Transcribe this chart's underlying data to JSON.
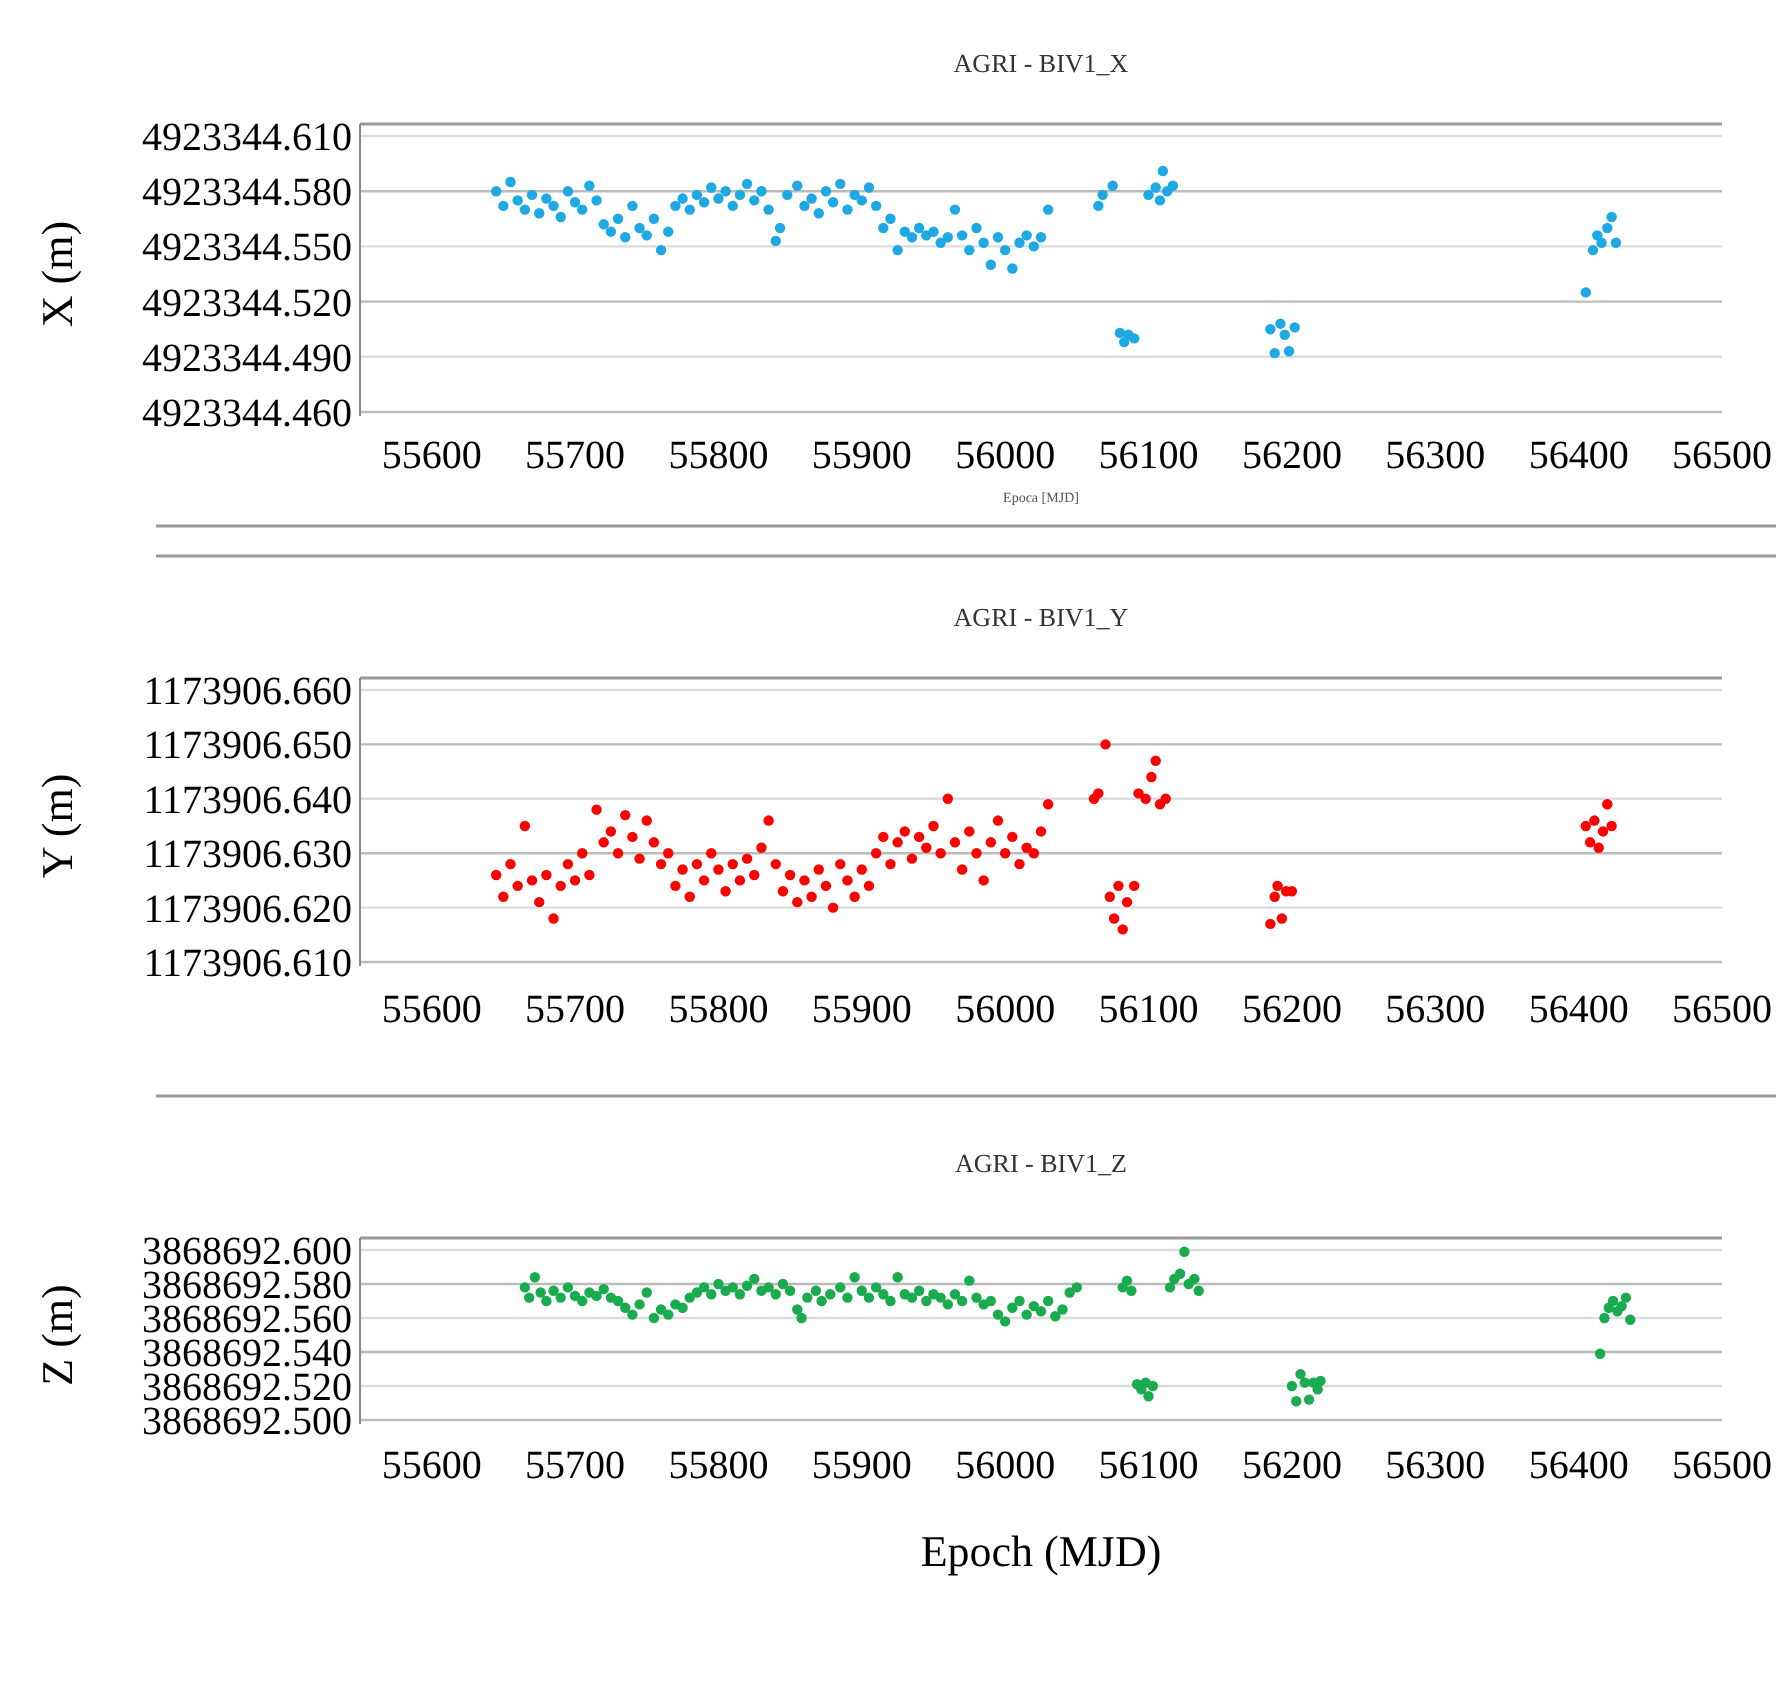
{
  "chart_data": [
    {
      "type": "scatter",
      "title": "AGRI - BIV1_X",
      "ylabel": "X (m)",
      "annotations": [
        "Epoca [MJD]"
      ],
      "color": "#1ea8e4",
      "marker": "circle",
      "grid": "y",
      "xlim": [
        55550,
        56500
      ],
      "xticks": [
        55600,
        55700,
        55800,
        55900,
        56000,
        56100,
        56200,
        56300,
        56400,
        56500
      ],
      "ylim": [
        4923344.46,
        4923344.61
      ],
      "yticks": [
        {
          "value": 4923344.46,
          "label": "4923344.460"
        },
        {
          "value": 4923344.49,
          "label": "4923344.490"
        },
        {
          "value": 4923344.52,
          "label": "4923344.520"
        },
        {
          "value": 4923344.55,
          "label": "4923344.550"
        },
        {
          "value": 4923344.58,
          "label": "4923344.580"
        },
        {
          "value": 4923344.61,
          "label": "4923344.610"
        }
      ],
      "x": [
        55645,
        55650,
        55655,
        55660,
        55665,
        55670,
        55675,
        55680,
        55685,
        55690,
        55695,
        55700,
        55705,
        55710,
        55715,
        55720,
        55725,
        55730,
        55735,
        55740,
        55745,
        55750,
        55755,
        55760,
        55765,
        55770,
        55775,
        55780,
        55785,
        55790,
        55795,
        55800,
        55805,
        55810,
        55815,
        55820,
        55825,
        55830,
        55835,
        55840,
        55843,
        55848,
        55855,
        55860,
        55865,
        55870,
        55875,
        55880,
        55885,
        55890,
        55895,
        55900,
        55905,
        55910,
        55915,
        55920,
        55925,
        55930,
        55935,
        55940,
        55945,
        55950,
        55955,
        55960,
        55965,
        55970,
        55975,
        55980,
        55985,
        55990,
        55995,
        56000,
        56005,
        56010,
        56015,
        56020,
        56025,
        56030,
        56065,
        56068,
        56075,
        56080,
        56083,
        56086,
        56090,
        56100,
        56105,
        56108,
        56110,
        56113,
        56117,
        56185,
        56188,
        56192,
        56195,
        56198,
        56202,
        56405,
        56410,
        56413,
        56416,
        56420,
        56423,
        56426
      ],
      "values": [
        4923344.58,
        4923344.572,
        4923344.585,
        4923344.575,
        4923344.57,
        4923344.578,
        4923344.568,
        4923344.576,
        4923344.572,
        4923344.566,
        4923344.58,
        4923344.574,
        4923344.57,
        4923344.583,
        4923344.575,
        4923344.562,
        4923344.558,
        4923344.565,
        4923344.555,
        4923344.572,
        4923344.56,
        4923344.556,
        4923344.565,
        4923344.548,
        4923344.558,
        4923344.572,
        4923344.576,
        4923344.57,
        4923344.578,
        4923344.574,
        4923344.582,
        4923344.576,
        4923344.58,
        4923344.572,
        4923344.578,
        4923344.584,
        4923344.575,
        4923344.58,
        4923344.57,
        4923344.553,
        4923344.56,
        4923344.578,
        4923344.583,
        4923344.572,
        4923344.576,
        4923344.568,
        4923344.58,
        4923344.574,
        4923344.584,
        4923344.57,
        4923344.578,
        4923344.575,
        4923344.582,
        4923344.572,
        4923344.56,
        4923344.565,
        4923344.548,
        4923344.558,
        4923344.555,
        4923344.56,
        4923344.556,
        4923344.558,
        4923344.552,
        4923344.555,
        4923344.57,
        4923344.556,
        4923344.548,
        4923344.56,
        4923344.552,
        4923344.54,
        4923344.555,
        4923344.548,
        4923344.538,
        4923344.552,
        4923344.556,
        4923344.55,
        4923344.555,
        4923344.57,
        4923344.572,
        4923344.578,
        4923344.583,
        4923344.503,
        4923344.498,
        4923344.502,
        4923344.5,
        4923344.578,
        4923344.582,
        4923344.575,
        4923344.591,
        4923344.58,
        4923344.583,
        4923344.505,
        4923344.492,
        4923344.508,
        4923344.502,
        4923344.493,
        4923344.506,
        4923344.525,
        4923344.548,
        4923344.556,
        4923344.552,
        4923344.56,
        4923344.566,
        4923344.552
      ]
    },
    {
      "type": "scatter",
      "title": "AGRI - BIV1_Y",
      "ylabel": "Y (m)",
      "color": "#ff0000",
      "marker": "circle",
      "grid": "y",
      "xlim": [
        55550,
        56500
      ],
      "xticks": [
        55600,
        55700,
        55800,
        55900,
        56000,
        56100,
        56200,
        56300,
        56400,
        56500
      ],
      "ylim": [
        1173906.61,
        1173906.66
      ],
      "yticks": [
        {
          "value": 1173906.61,
          "label": "1173906.610"
        },
        {
          "value": 1173906.62,
          "label": "1173906.620"
        },
        {
          "value": 1173906.63,
          "label": "1173906.630"
        },
        {
          "value": 1173906.64,
          "label": "1173906.640"
        },
        {
          "value": 1173906.65,
          "label": "1173906.650"
        },
        {
          "value": 1173906.66,
          "label": "1173906.660"
        }
      ],
      "x": [
        55645,
        55650,
        55655,
        55660,
        55665,
        55670,
        55675,
        55680,
        55685,
        55690,
        55695,
        55700,
        55705,
        55710,
        55715,
        55720,
        55725,
        55730,
        55735,
        55740,
        55745,
        55750,
        55755,
        55760,
        55765,
        55770,
        55775,
        55780,
        55785,
        55790,
        55795,
        55800,
        55805,
        55810,
        55815,
        55820,
        55825,
        55830,
        55835,
        55840,
        55845,
        55850,
        55855,
        55860,
        55865,
        55870,
        55875,
        55880,
        55885,
        55890,
        55895,
        55900,
        55905,
        55910,
        55915,
        55920,
        55925,
        55930,
        55935,
        55940,
        55945,
        55950,
        55955,
        55960,
        55965,
        55970,
        55975,
        55980,
        55985,
        55990,
        55995,
        56000,
        56005,
        56010,
        56015,
        56020,
        56025,
        56030,
        56062,
        56065,
        56070,
        56073,
        56076,
        56079,
        56082,
        56085,
        56090,
        56093,
        56098,
        56102,
        56105,
        56108,
        56112,
        56185,
        56188,
        56190,
        56193,
        56196,
        56200,
        56405,
        56408,
        56411,
        56414,
        56417,
        56420,
        56423
      ],
      "values": [
        1173906.626,
        1173906.622,
        1173906.628,
        1173906.624,
        1173906.635,
        1173906.625,
        1173906.621,
        1173906.626,
        1173906.618,
        1173906.624,
        1173906.628,
        1173906.625,
        1173906.63,
        1173906.626,
        1173906.638,
        1173906.632,
        1173906.634,
        1173906.63,
        1173906.637,
        1173906.633,
        1173906.629,
        1173906.636,
        1173906.632,
        1173906.628,
        1173906.63,
        1173906.624,
        1173906.627,
        1173906.622,
        1173906.628,
        1173906.625,
        1173906.63,
        1173906.627,
        1173906.623,
        1173906.628,
        1173906.625,
        1173906.629,
        1173906.626,
        1173906.631,
        1173906.636,
        1173906.628,
        1173906.623,
        1173906.626,
        1173906.621,
        1173906.625,
        1173906.622,
        1173906.627,
        1173906.624,
        1173906.62,
        1173906.628,
        1173906.625,
        1173906.622,
        1173906.627,
        1173906.624,
        1173906.63,
        1173906.633,
        1173906.628,
        1173906.632,
        1173906.634,
        1173906.629,
        1173906.633,
        1173906.631,
        1173906.635,
        1173906.63,
        1173906.64,
        1173906.632,
        1173906.627,
        1173906.634,
        1173906.63,
        1173906.625,
        1173906.632,
        1173906.636,
        1173906.63,
        1173906.633,
        1173906.628,
        1173906.631,
        1173906.63,
        1173906.634,
        1173906.639,
        1173906.64,
        1173906.641,
        1173906.65,
        1173906.622,
        1173906.618,
        1173906.624,
        1173906.616,
        1173906.621,
        1173906.624,
        1173906.641,
        1173906.64,
        1173906.644,
        1173906.647,
        1173906.639,
        1173906.64,
        1173906.617,
        1173906.622,
        1173906.624,
        1173906.618,
        1173906.623,
        1173906.623,
        1173906.635,
        1173906.632,
        1173906.636,
        1173906.631,
        1173906.634,
        1173906.639,
        1173906.635
      ]
    },
    {
      "type": "scatter",
      "title": "AGRI - BIV1_Z",
      "ylabel": "Z (m)",
      "xlabel": "Epoch (MJD)",
      "color": "#1aab4f",
      "marker": "circle",
      "grid": "y",
      "xlim": [
        55550,
        56500
      ],
      "xticks": [
        55600,
        55700,
        55800,
        55900,
        56000,
        56100,
        56200,
        56300,
        56400,
        56500
      ],
      "ylim": [
        3868692.5,
        3868692.6
      ],
      "yticks": [
        {
          "value": 3868692.5,
          "label": "3868692.500"
        },
        {
          "value": 3868692.52,
          "label": "3868692.520"
        },
        {
          "value": 3868692.54,
          "label": "3868692.540"
        },
        {
          "value": 3868692.56,
          "label": "3868692.560"
        },
        {
          "value": 3868692.58,
          "label": "3868692.580"
        },
        {
          "value": 3868692.6,
          "label": "3868692.600"
        }
      ],
      "x": [
        55665,
        55668,
        55672,
        55676,
        55680,
        55685,
        55690,
        55695,
        55700,
        55705,
        55710,
        55715,
        55720,
        55725,
        55730,
        55735,
        55740,
        55745,
        55750,
        55755,
        55760,
        55765,
        55770,
        55775,
        55780,
        55785,
        55790,
        55795,
        55800,
        55805,
        55810,
        55815,
        55820,
        55825,
        55830,
        55835,
        55840,
        55845,
        55850,
        55855,
        55858,
        55862,
        55868,
        55872,
        55878,
        55885,
        55890,
        55895,
        55900,
        55905,
        55910,
        55915,
        55920,
        55925,
        55930,
        55935,
        55940,
        55945,
        55950,
        55955,
        55960,
        55965,
        55970,
        55975,
        55980,
        55985,
        55990,
        55995,
        56000,
        56005,
        56010,
        56015,
        56020,
        56025,
        56030,
        56035,
        56040,
        56045,
        56050,
        56082,
        56085,
        56088,
        56092,
        56095,
        56098,
        56100,
        56103,
        56115,
        56118,
        56122,
        56125,
        56128,
        56132,
        56135,
        56200,
        56203,
        56206,
        56209,
        56212,
        56215,
        56218,
        56220,
        56415,
        56418,
        56421,
        56424,
        56427,
        56430,
        56433,
        56436
      ],
      "values": [
        3868692.578,
        3868692.572,
        3868692.584,
        3868692.575,
        3868692.57,
        3868692.576,
        3868692.572,
        3868692.578,
        3868692.573,
        3868692.57,
        3868692.575,
        3868692.573,
        3868692.577,
        3868692.572,
        3868692.57,
        3868692.566,
        3868692.562,
        3868692.568,
        3868692.575,
        3868692.56,
        3868692.565,
        3868692.562,
        3868692.568,
        3868692.566,
        3868692.572,
        3868692.575,
        3868692.578,
        3868692.574,
        3868692.58,
        3868692.576,
        3868692.578,
        3868692.574,
        3868692.579,
        3868692.583,
        3868692.576,
        3868692.578,
        3868692.574,
        3868692.58,
        3868692.576,
        3868692.565,
        3868692.56,
        3868692.572,
        3868692.576,
        3868692.57,
        3868692.574,
        3868692.578,
        3868692.572,
        3868692.584,
        3868692.576,
        3868692.572,
        3868692.578,
        3868692.574,
        3868692.57,
        3868692.584,
        3868692.574,
        3868692.572,
        3868692.576,
        3868692.57,
        3868692.574,
        3868692.572,
        3868692.568,
        3868692.574,
        3868692.57,
        3868692.582,
        3868692.572,
        3868692.568,
        3868692.57,
        3868692.562,
        3868692.558,
        3868692.566,
        3868692.57,
        3868692.562,
        3868692.567,
        3868692.564,
        3868692.57,
        3868692.561,
        3868692.565,
        3868692.575,
        3868692.578,
        3868692.578,
        3868692.582,
        3868692.576,
        3868692.521,
        3868692.518,
        3868692.522,
        3868692.514,
        3868692.52,
        3868692.578,
        3868692.583,
        3868692.586,
        3868692.599,
        3868692.58,
        3868692.583,
        3868692.576,
        3868692.52,
        3868692.511,
        3868692.527,
        3868692.522,
        3868692.512,
        3868692.522,
        3868692.518,
        3868692.523,
        3868692.539,
        3868692.56,
        3868692.566,
        3868692.57,
        3868692.564,
        3868692.567,
        3868692.572,
        3868692.559
      ]
    }
  ]
}
